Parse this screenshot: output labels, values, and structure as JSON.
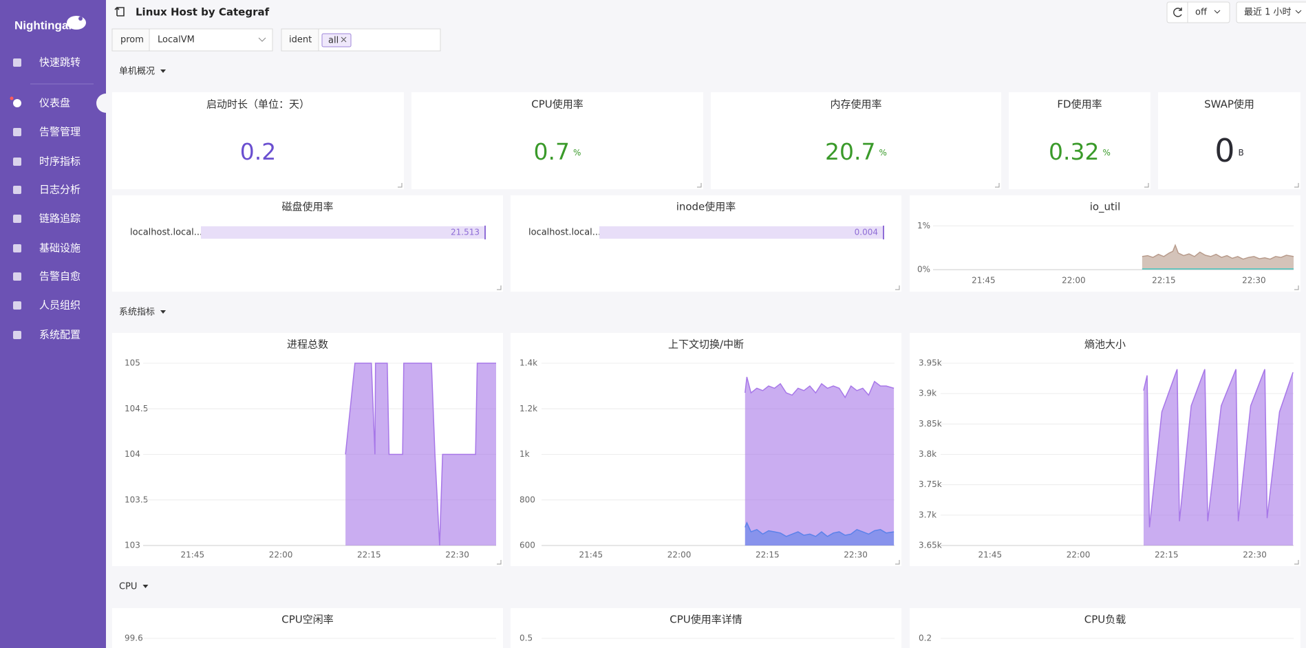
{
  "sidebar": {
    "logo": "Nightingale",
    "menu": [
      "快速跳转",
      "仪表盘",
      "告警管理",
      "时序指标",
      "日志分析",
      "链路追踪",
      "基础设施",
      "告警自愈",
      "人员组织",
      "系统配置"
    ]
  },
  "header": {
    "title": "Linux Host by Categraf",
    "refresh": "off",
    "time_range": "最近 1 小时"
  },
  "filters": [
    {
      "label": "prom",
      "value": "LocalVM"
    },
    {
      "label": "ident",
      "value": "all"
    }
  ],
  "sections": [
    "单机概况",
    "系统指标",
    "CPU"
  ],
  "stats": [
    {
      "title": "启动时长（单位：天）",
      "value": 0.2,
      "color": "#6a4fd0"
    },
    {
      "title": "CPU使用率",
      "value": 0.7,
      "unit": "%",
      "color": "#3a9a2a"
    },
    {
      "title": "内存使用率",
      "value": 20.7,
      "unit": "%",
      "color": "#3a9a2a"
    },
    {
      "title": "FD使用率",
      "value": 0.32,
      "unit": "%",
      "color": "#3a9a2a"
    },
    {
      "title": "SWAP使用",
      "value": 0,
      "unit": "B",
      "color": "#2b2b33"
    }
  ],
  "gauges": [
    {
      "title": "磁盘使用率",
      "label": "localhost.local...",
      "value": 21.513
    },
    {
      "title": "inode使用率",
      "label": "localhost.local...",
      "value": 0.004
    }
  ],
  "chart_data": [
    {
      "type": "area",
      "title": "io_util",
      "x": [
        1331.4,
        1332.3,
        1333.2,
        1334.1,
        1335,
        1335.9,
        1336.5,
        1336.9,
        1337.4,
        1338.3,
        1339.2,
        1340.1,
        1341,
        1341.9,
        1342.8,
        1343.7,
        1344.6,
        1345.5,
        1346.4,
        1347.3,
        1348.2,
        1349.1,
        1350,
        1350.9,
        1351.8,
        1352.7,
        1353.6,
        1354.5,
        1355.4,
        1356.6
      ],
      "series": [
        {
          "color": "#b89b8b",
          "values": [
            0.3,
            0.32,
            0.28,
            0.35,
            0.3,
            0.38,
            0.42,
            0.56,
            0.38,
            0.32,
            0.36,
            0.3,
            0.4,
            0.33,
            0.3,
            0.35,
            0.28,
            0.32,
            0.26,
            0.3,
            0.24,
            0.28,
            0.3,
            0.25,
            0.27,
            0.24,
            0.3,
            0.28,
            0.33,
            0.3
          ]
        },
        {
          "color": "#5cc6c0",
          "x": [
            1331.4,
            1356.6
          ],
          "values": [
            0.02,
            0.02
          ]
        }
      ],
      "xlim": [
        1296.6,
        1356.6
      ],
      "xticks": [
        {
          "value": 1305,
          "label": "21:45"
        },
        {
          "value": 1320,
          "label": "22:00"
        },
        {
          "value": 1335,
          "label": "22:15"
        },
        {
          "value": 1350,
          "label": "22:30"
        }
      ],
      "ylim": [
        0,
        1.1
      ],
      "yticks": [
        {
          "value": 0,
          "label": "0%"
        },
        {
          "value": 1,
          "label": "1%"
        }
      ],
      "grid": true
    },
    {
      "type": "area",
      "title": "进程总数",
      "x": [
        1331,
        1332.6,
        1335.4,
        1336,
        1336.1,
        1338.1,
        1338.4,
        1340.7,
        1340.9,
        1345.6,
        1346.2,
        1347,
        1347.5,
        1353.1,
        1353.4,
        1356.6
      ],
      "series": [
        {
          "color": "#a777e8",
          "values": [
            104,
            105,
            105,
            104,
            105,
            105,
            104,
            104,
            105,
            105,
            104,
            103,
            104,
            104,
            105,
            105
          ]
        }
      ],
      "xlim": [
        1296.6,
        1356.6
      ],
      "xticks": [
        {
          "value": 1305,
          "label": "21:45"
        },
        {
          "value": 1320,
          "label": "22:00"
        },
        {
          "value": 1335,
          "label": "22:15"
        },
        {
          "value": 1350,
          "label": "22:30"
        }
      ],
      "ylim": [
        103,
        105
      ],
      "yticks": [
        103,
        103.5,
        104,
        104.5,
        105
      ],
      "grid": true
    },
    {
      "type": "area",
      "title": "上下文切换/中断",
      "x": [
        1331.2,
        1331.5,
        1332.2,
        1333.2,
        1334.2,
        1335.2,
        1336.2,
        1337.2,
        1338.2,
        1339.2,
        1340.2,
        1341.2,
        1342.2,
        1343.2,
        1344.2,
        1345.2,
        1346.2,
        1347.2,
        1348.2,
        1349.2,
        1350.2,
        1351.2,
        1352.2,
        1353.2,
        1354.2,
        1355.2,
        1356.5
      ],
      "series": [
        {
          "color": "#a777e8",
          "values": [
            1270,
            1340,
            1270,
            1290,
            1280,
            1300,
            1290,
            1310,
            1270,
            1260,
            1290,
            1280,
            1300,
            1270,
            1310,
            1290,
            1300,
            1290,
            1250,
            1300,
            1280,
            1290,
            1260,
            1320,
            1300,
            1300,
            1290
          ]
        },
        {
          "color": "#5b82ea",
          "values": [
            680,
            700,
            660,
            670,
            650,
            665,
            660,
            655,
            640,
            650,
            660,
            645,
            650,
            640,
            660,
            640,
            655,
            660,
            645,
            650,
            670,
            660,
            650,
            665,
            670,
            655,
            660
          ]
        }
      ],
      "xlim": [
        1296.6,
        1356.6
      ],
      "xticks": [
        {
          "value": 1305,
          "label": "21:45"
        },
        {
          "value": 1320,
          "label": "22:00"
        },
        {
          "value": 1335,
          "label": "22:15"
        },
        {
          "value": 1350,
          "label": "22:30"
        }
      ],
      "ylim": [
        600,
        1400
      ],
      "yticks": [
        600,
        800,
        {
          "value": 1000,
          "label": "1k"
        },
        {
          "value": 1200,
          "label": "1.2k"
        },
        {
          "value": 1400,
          "label": "1.4k"
        }
      ],
      "grid": true
    },
    {
      "type": "area",
      "title": "熵池大小",
      "x": [
        1331.1,
        1331.7,
        1332.1,
        1334.2,
        1336.8,
        1337.2,
        1339.2,
        1341.5,
        1342,
        1344.3,
        1346.8,
        1347.2,
        1349.3,
        1351.7,
        1352.1,
        1354.2,
        1356.5
      ],
      "series": [
        {
          "color": "#a777e8",
          "values": [
            3905,
            3930,
            3680,
            3870,
            3940,
            3690,
            3880,
            3940,
            3690,
            3880,
            3940,
            3690,
            3880,
            3940,
            3695,
            3870,
            3935
          ]
        }
      ],
      "xlim": [
        1296.6,
        1356.6
      ],
      "xticks": [
        {
          "value": 1305,
          "label": "21:45"
        },
        {
          "value": 1320,
          "label": "22:00"
        },
        {
          "value": 1335,
          "label": "22:15"
        },
        {
          "value": 1350,
          "label": "22:30"
        }
      ],
      "ylim": [
        3650,
        3950
      ],
      "yticks": [
        {
          "value": 3650,
          "label": "3.65k"
        },
        {
          "value": 3700,
          "label": "3.7k"
        },
        {
          "value": 3750,
          "label": "3.75k"
        },
        {
          "value": 3800,
          "label": "3.8k"
        },
        {
          "value": 3850,
          "label": "3.85k"
        },
        {
          "value": 3900,
          "label": "3.9k"
        },
        {
          "value": 3950,
          "label": "3.95k"
        }
      ],
      "grid": true
    },
    {
      "type": "area",
      "title": "CPU空闲率",
      "yticks": [
        99.6
      ],
      "grid": true
    },
    {
      "type": "area",
      "title": "CPU使用率详情",
      "yticks": [
        0.5
      ],
      "grid": true
    },
    {
      "type": "area",
      "title": "CPU负载",
      "yticks": [
        0.2
      ],
      "grid": true
    }
  ]
}
